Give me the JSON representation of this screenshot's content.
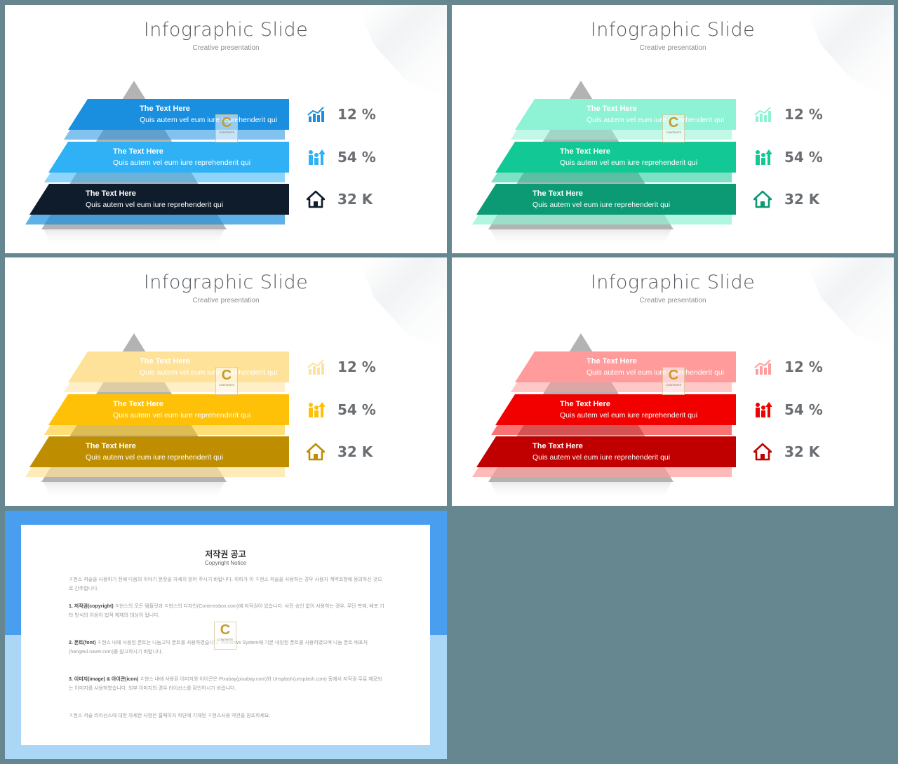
{
  "slides": [
    {
      "title": "Infographic Slide",
      "subtitle": "Creative presentation",
      "colors": {
        "top": "#1a8fe0",
        "mid": "#30b1f5",
        "bot": "#0f1c2b",
        "icon1": "#1a8fe0",
        "icon2": "#30b1f5",
        "icon3": "#0f1c2b"
      },
      "bands": [
        {
          "title": "The Text Here",
          "desc": "Quis autem vel eum iure reprehenderit qui"
        },
        {
          "title": "The Text Here",
          "desc": "Quis autem vel eum iure reprehenderit qui"
        },
        {
          "title": "The Text Here",
          "desc": "Quis autem vel eum iure reprehenderit qui"
        }
      ],
      "stats": [
        {
          "icon": "bar-chart-icon",
          "value": "12 %"
        },
        {
          "icon": "people-growth-icon",
          "value": "54 %"
        },
        {
          "icon": "home-icon",
          "value": "32 K"
        }
      ]
    },
    {
      "title": "Infographic Slide",
      "subtitle": "Creative presentation",
      "colors": {
        "top": "#8ef2d4",
        "mid": "#12c995",
        "bot": "#0c9a74",
        "icon1": "#8ef2d4",
        "icon2": "#12c995",
        "icon3": "#0c9a74"
      },
      "bands": [
        {
          "title": "The Text Here",
          "desc": "Quis autem vel eum iure reprehenderit qui"
        },
        {
          "title": "The Text Here",
          "desc": "Quis autem vel eum iure reprehenderit qui"
        },
        {
          "title": "The Text Here",
          "desc": "Quis autem vel eum iure reprehenderit qui"
        }
      ],
      "stats": [
        {
          "icon": "bar-chart-icon",
          "value": "12 %"
        },
        {
          "icon": "people-growth-icon",
          "value": "54 %"
        },
        {
          "icon": "home-icon",
          "value": "32 K"
        }
      ]
    },
    {
      "title": "Infographic Slide",
      "subtitle": "Creative presentation",
      "colors": {
        "top": "#ffe29a",
        "mid": "#ffc107",
        "bot": "#bf8e00",
        "icon1": "#ffe29a",
        "icon2": "#ffc107",
        "icon3": "#bf8e00"
      },
      "bands": [
        {
          "title": "The Text Here",
          "desc": "Quis autem vel eum iure reprehenderit qui"
        },
        {
          "title": "The Text Here",
          "desc": "Quis autem vel eum iure reprehenderit qui"
        },
        {
          "title": "The Text Here",
          "desc": "Quis autem vel eum iure reprehenderit qui"
        }
      ],
      "stats": [
        {
          "icon": "bar-chart-icon",
          "value": "12 %"
        },
        {
          "icon": "people-growth-icon",
          "value": "54 %"
        },
        {
          "icon": "home-icon",
          "value": "32 K"
        }
      ]
    },
    {
      "title": "Infographic Slide",
      "subtitle": "Creative presentation",
      "colors": {
        "top": "#ff9b9b",
        "mid": "#f20000",
        "bot": "#c00000",
        "icon1": "#ff9b9b",
        "icon2": "#f20000",
        "icon3": "#c00000"
      },
      "bands": [
        {
          "title": "The Text Here",
          "desc": "Quis autem vel eum iure reprehenderit qui"
        },
        {
          "title": "The Text Here",
          "desc": "Quis autem vel eum iure reprehenderit qui"
        },
        {
          "title": "The Text Here",
          "desc": "Quis autem vel eum iure reprehenderit qui"
        }
      ],
      "stats": [
        {
          "icon": "bar-chart-icon",
          "value": "12 %"
        },
        {
          "icon": "people-growth-icon",
          "value": "54 %"
        },
        {
          "icon": "home-icon",
          "value": "32 K"
        }
      ]
    }
  ],
  "watermark": {
    "letter": "C",
    "text": "CONTENTS"
  },
  "copyright": {
    "title": "저작권 공고",
    "subtitle": "Copyright Notice",
    "p1": "ㅈ현스 저술을 사용하기 전에 다음의 이야기 문장을 자세히 읽어 주시기 바랍니다. 위하가 이 ㅈ현스 저술을 사용하는 경우 사용자 계약조항에 동의하신 것으로 간주합니다.",
    "p2_label": "1. 저작권(copyright)",
    "p2": "ㅈ현스의 모든 템플릿과 ㅈ현스의 디자인(Contentsbox.com)에 저작권이 있습니다. 사전 승인 없이 사용하는 경우, 무단 복제, 배포 기타 방식의 이용이 법적 제재의 대상이 됩니다.",
    "p3_label": "2. 폰트(font)",
    "p3": "ㅈ현스 내에 사용된 폰트는 나눔고딕 폰트를 사용하였습니다. Windows System에 기본 내장된 폰트를 사용하였으며 나눔 폰트 배포처(hangeul.naver.com)를 참고하시기 바랍니다.",
    "p4_label": "3. 이미지(image) & 아이콘(icon)",
    "p4": "ㅈ현스 내에 사용된 이미지와 아이콘은 Pixabay(pixabay.com)와 Unsplash(unsplash.com) 등에서 저작권 무료 제공되는 이미지를 사용하였습니다. 외부 이미지의 경우 라이선스를 확인하시기 바랍니다.",
    "p5": "ㅈ현스 저술 라이선스에 대한 자세한 사항은 홈페이지 하단에 기재된 ㅈ현스사용 약관을 참조하세요."
  }
}
